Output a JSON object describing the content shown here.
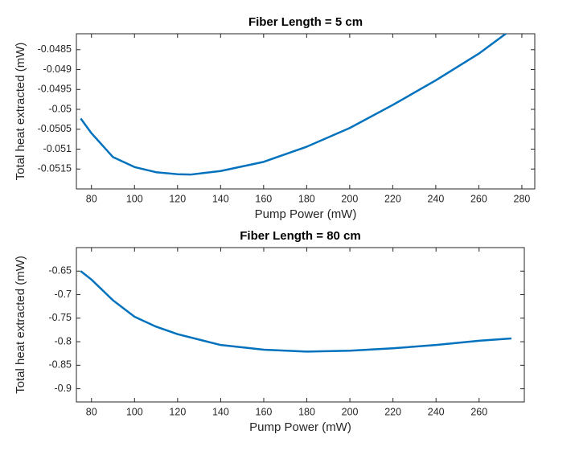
{
  "chart_data": [
    {
      "type": "line",
      "title": "Fiber Length = 5 cm",
      "xlabel": "Pump Power (mW)",
      "ylabel": "Total heat extracted (mW)",
      "x": [
        75,
        80,
        85,
        90,
        100,
        110,
        120,
        126,
        140,
        160,
        180,
        200,
        220,
        240,
        260,
        275
      ],
      "values": [
        -0.05023,
        -0.0506,
        -0.0509,
        -0.0512,
        -0.05145,
        -0.05158,
        -0.05163,
        -0.05164,
        -0.05155,
        -0.05132,
        -0.05094,
        -0.05047,
        -0.04989,
        -0.04927,
        -0.0486,
        -0.048
      ],
      "color": "#0072bd",
      "xlim": [
        73,
        286
      ],
      "ylim": [
        -0.052,
        -0.0481
      ],
      "xticks": [
        80,
        100,
        120,
        140,
        160,
        180,
        200,
        220,
        240,
        260,
        280
      ],
      "yticks": [
        -0.0515,
        -0.051,
        -0.0505,
        -0.05,
        -0.0495,
        -0.049,
        -0.0485
      ]
    },
    {
      "type": "line",
      "title": "Fiber Length = 80 cm",
      "xlabel": "Pump Power (mW)",
      "ylabel": "Total heat extracted (mW)",
      "x": [
        75,
        80,
        90,
        100,
        110,
        120,
        140,
        160,
        180,
        200,
        220,
        240,
        260,
        275
      ],
      "values": [
        -0.65,
        -0.668,
        -0.712,
        -0.747,
        -0.768,
        -0.784,
        -0.807,
        -0.817,
        -0.821,
        -0.819,
        -0.814,
        -0.807,
        -0.798,
        -0.793
      ],
      "color": "#0072bd",
      "xlim": [
        73,
        281
      ],
      "ylim": [
        -0.928,
        -0.6
      ],
      "xticks": [
        80,
        100,
        120,
        140,
        160,
        180,
        200,
        220,
        240,
        260
      ],
      "yticks": [
        -0.9,
        -0.85,
        -0.8,
        -0.75,
        -0.7,
        -0.65
      ]
    }
  ]
}
